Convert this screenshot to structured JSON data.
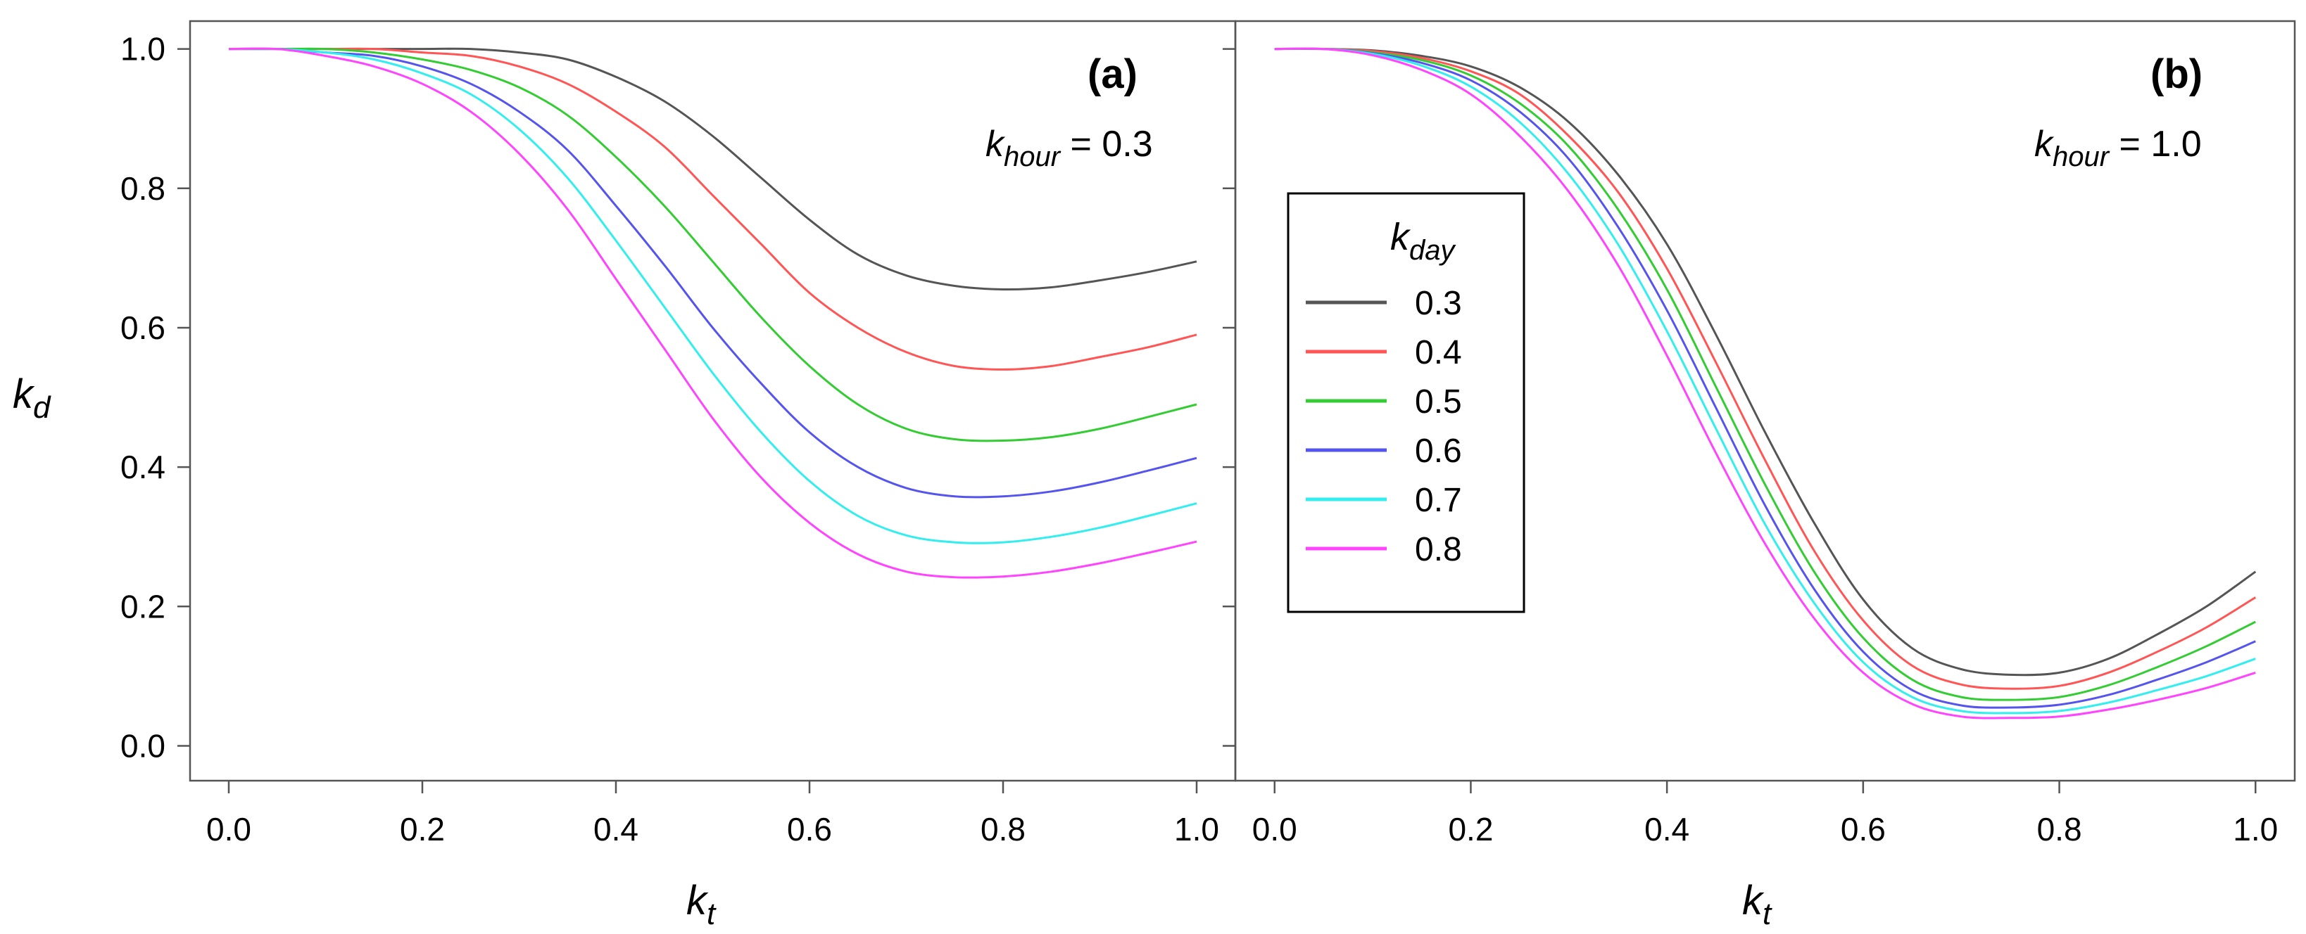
{
  "chart_data": [
    {
      "panel": "a",
      "type": "line",
      "panel_label": "(a)",
      "annotation": {
        "symbol": "k",
        "subscript": "hour",
        "value_text": " = 0.3"
      },
      "xlabel": {
        "symbol": "k",
        "subscript": "t"
      },
      "ylabel": {
        "symbol": "k",
        "subscript": "d"
      },
      "xlim": [
        -0.04,
        1.04
      ],
      "ylim": [
        -0.05,
        1.04
      ],
      "x_ticks": [
        "0.0",
        "0.2",
        "0.4",
        "0.6",
        "0.8",
        "1.0"
      ],
      "y_ticks": [
        "0.0",
        "0.2",
        "0.4",
        "0.6",
        "0.8",
        "1.0"
      ],
      "x": [
        0.0,
        0.05,
        0.1,
        0.15,
        0.2,
        0.25,
        0.3,
        0.35,
        0.4,
        0.45,
        0.5,
        0.55,
        0.6,
        0.65,
        0.7,
        0.75,
        0.8,
        0.85,
        0.9,
        0.95,
        1.0
      ],
      "series": [
        {
          "kday": "0.3",
          "color": "#555555",
          "values": [
            1.0,
            1.0,
            1.0,
            1.0,
            1.0,
            1.0,
            0.995,
            0.985,
            0.96,
            0.925,
            0.875,
            0.815,
            0.755,
            0.705,
            0.675,
            0.66,
            0.655,
            0.658,
            0.668,
            0.68,
            0.695
          ]
        },
        {
          "kday": "0.4",
          "color": "#ff5555",
          "values": [
            1.0,
            1.0,
            1.0,
            1.0,
            0.995,
            0.99,
            0.975,
            0.95,
            0.91,
            0.86,
            0.79,
            0.72,
            0.65,
            0.6,
            0.565,
            0.545,
            0.54,
            0.545,
            0.558,
            0.572,
            0.59
          ]
        },
        {
          "kday": "0.5",
          "color": "#33cc33",
          "values": [
            1.0,
            1.0,
            1.0,
            0.995,
            0.985,
            0.97,
            0.945,
            0.905,
            0.845,
            0.775,
            0.695,
            0.615,
            0.545,
            0.49,
            0.455,
            0.44,
            0.438,
            0.443,
            0.455,
            0.472,
            0.49
          ]
        },
        {
          "kday": "0.6",
          "color": "#5555ee",
          "values": [
            1.0,
            1.0,
            0.995,
            0.99,
            0.975,
            0.95,
            0.91,
            0.855,
            0.775,
            0.69,
            0.6,
            0.52,
            0.45,
            0.4,
            0.37,
            0.358,
            0.358,
            0.365,
            0.378,
            0.395,
            0.413
          ]
        },
        {
          "kday": "0.7",
          "color": "#33eeee",
          "values": [
            1.0,
            1.0,
            0.995,
            0.985,
            0.965,
            0.935,
            0.885,
            0.815,
            0.725,
            0.63,
            0.535,
            0.45,
            0.38,
            0.33,
            0.302,
            0.292,
            0.292,
            0.3,
            0.313,
            0.33,
            0.348
          ]
        },
        {
          "kday": "0.8",
          "color": "#ff44ff",
          "values": [
            1.0,
            1.0,
            0.99,
            0.975,
            0.95,
            0.91,
            0.85,
            0.77,
            0.67,
            0.57,
            0.47,
            0.385,
            0.32,
            0.275,
            0.25,
            0.242,
            0.243,
            0.25,
            0.262,
            0.277,
            0.293
          ]
        }
      ]
    },
    {
      "panel": "b",
      "type": "line",
      "panel_label": "(b)",
      "annotation": {
        "symbol": "k",
        "subscript": "hour",
        "value_text": " = 1.0"
      },
      "xlabel": {
        "symbol": "k",
        "subscript": "t"
      },
      "xlim": [
        -0.04,
        1.04
      ],
      "ylim": [
        -0.05,
        1.04
      ],
      "x_ticks": [
        "0.0",
        "0.2",
        "0.4",
        "0.6",
        "0.8",
        "1.0"
      ],
      "x": [
        0.0,
        0.05,
        0.1,
        0.15,
        0.2,
        0.25,
        0.3,
        0.35,
        0.4,
        0.45,
        0.5,
        0.55,
        0.6,
        0.65,
        0.7,
        0.75,
        0.8,
        0.85,
        0.9,
        0.95,
        1.0
      ],
      "series": [
        {
          "kday": "0.3",
          "color": "#555555",
          "values": [
            1.0,
            1.0,
            0.998,
            0.99,
            0.975,
            0.945,
            0.895,
            0.82,
            0.72,
            0.59,
            0.45,
            0.32,
            0.21,
            0.14,
            0.11,
            0.102,
            0.105,
            0.125,
            0.16,
            0.2,
            0.25
          ]
        },
        {
          "kday": "0.4",
          "color": "#ff5555",
          "values": [
            1.0,
            1.0,
            0.997,
            0.987,
            0.968,
            0.935,
            0.875,
            0.795,
            0.685,
            0.55,
            0.41,
            0.28,
            0.18,
            0.115,
            0.088,
            0.082,
            0.086,
            0.105,
            0.135,
            0.17,
            0.213
          ]
        },
        {
          "kday": "0.5",
          "color": "#33cc33",
          "values": [
            1.0,
            1.0,
            0.995,
            0.984,
            0.962,
            0.922,
            0.86,
            0.77,
            0.655,
            0.515,
            0.375,
            0.25,
            0.155,
            0.095,
            0.07,
            0.066,
            0.07,
            0.087,
            0.113,
            0.143,
            0.178
          ]
        },
        {
          "kday": "0.6",
          "color": "#5555ee",
          "values": [
            1.0,
            1.0,
            0.994,
            0.98,
            0.955,
            0.91,
            0.842,
            0.745,
            0.625,
            0.485,
            0.345,
            0.225,
            0.135,
            0.08,
            0.058,
            0.055,
            0.059,
            0.073,
            0.095,
            0.12,
            0.15
          ]
        },
        {
          "kday": "0.7",
          "color": "#33eeee",
          "values": [
            1.0,
            1.0,
            0.993,
            0.976,
            0.946,
            0.895,
            0.82,
            0.72,
            0.595,
            0.455,
            0.318,
            0.205,
            0.12,
            0.07,
            0.05,
            0.047,
            0.05,
            0.062,
            0.08,
            0.1,
            0.125
          ]
        },
        {
          "kday": "0.8",
          "color": "#ff44ff",
          "values": [
            1.0,
            1.0,
            0.991,
            0.97,
            0.935,
            0.875,
            0.795,
            0.69,
            0.56,
            0.42,
            0.29,
            0.183,
            0.105,
            0.06,
            0.042,
            0.04,
            0.042,
            0.052,
            0.066,
            0.083,
            0.105
          ]
        }
      ]
    }
  ],
  "legend": {
    "title": {
      "symbol": "k",
      "subscript": "day"
    },
    "placement": "center-left of panel b",
    "entries": [
      "0.3",
      "0.4",
      "0.5",
      "0.6",
      "0.7",
      "0.8"
    ]
  }
}
